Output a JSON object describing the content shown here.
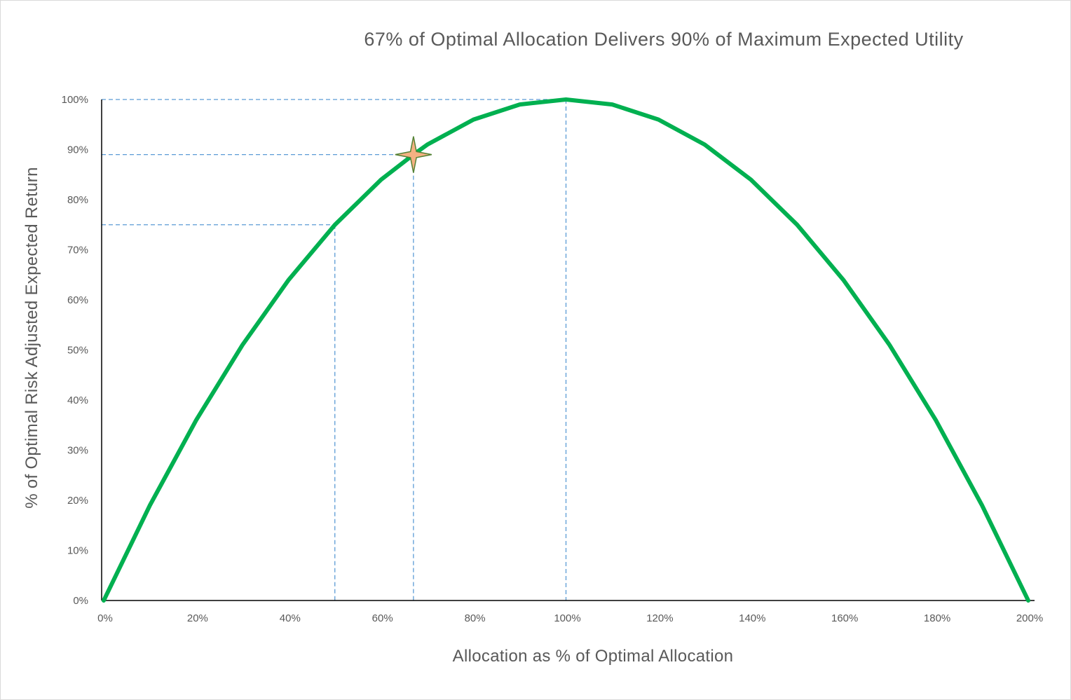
{
  "chart_data": {
    "type": "line",
    "title": "67% of Optimal Allocation Delivers 90% of Maximum Expected Utility",
    "xlabel": "Allocation as % of Optimal Allocation",
    "ylabel": "% of Optimal Risk Adjusted Expected Return",
    "x_tick_labels": [
      "0%",
      "20%",
      "40%",
      "60%",
      "80%",
      "100%",
      "120%",
      "140%",
      "160%",
      "180%",
      "200%"
    ],
    "y_tick_labels": [
      "0%",
      "10%",
      "20%",
      "30%",
      "40%",
      "50%",
      "60%",
      "70%",
      "80%",
      "90%",
      "100%"
    ],
    "xlim": [
      0,
      200
    ],
    "ylim": [
      0,
      100
    ],
    "grid": false,
    "legend": "none",
    "series": [
      {
        "color": "#00b050",
        "x": [
          0,
          10,
          20,
          30,
          40,
          50,
          60,
          67,
          70,
          80,
          90,
          100,
          110,
          120,
          130,
          140,
          150,
          160,
          170,
          180,
          190,
          200
        ],
        "y": [
          0,
          19,
          36,
          51,
          64,
          75,
          84,
          89,
          91,
          96,
          99,
          100,
          99,
          96,
          91,
          84,
          75,
          64,
          51,
          36,
          19,
          0
        ]
      }
    ],
    "reference_lines": [
      {
        "x": 50,
        "y": 75
      },
      {
        "x": 67,
        "y": 89
      },
      {
        "x": 100,
        "y": 100
      }
    ],
    "highlight_point": {
      "x": 67,
      "y": 89,
      "marker": "star-icon",
      "color": "#f4b183",
      "stroke": "#548235"
    },
    "colors": {
      "curve": "#00b050",
      "reference": "#5b9bd5",
      "axis": "#000000",
      "text": "#595959"
    }
  }
}
